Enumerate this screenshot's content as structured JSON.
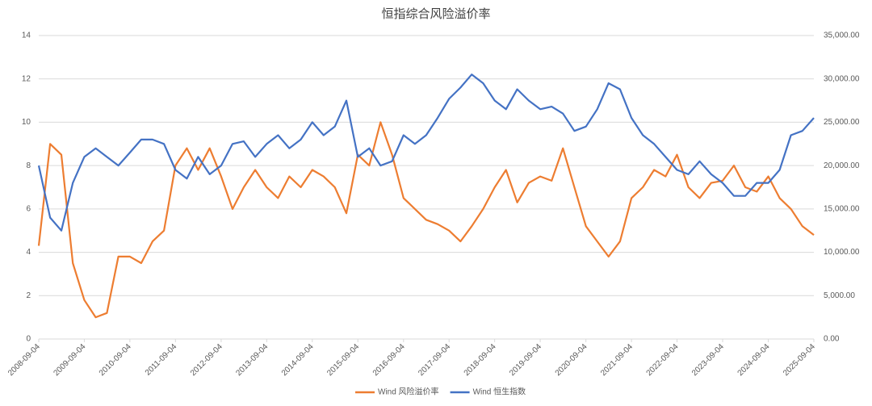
{
  "chart_data": {
    "type": "line",
    "title": "恒指综合风险溢价率",
    "x": [
      "2008-09-04",
      "2008-12-04",
      "2009-03-04",
      "2009-06-04",
      "2009-09-04",
      "2009-12-04",
      "2010-03-04",
      "2010-06-04",
      "2010-09-04",
      "2010-12-04",
      "2011-03-04",
      "2011-06-04",
      "2011-09-04",
      "2011-12-04",
      "2012-03-04",
      "2012-06-04",
      "2012-09-04",
      "2012-12-04",
      "2013-03-04",
      "2013-06-04",
      "2013-09-04",
      "2013-12-04",
      "2014-03-04",
      "2014-06-04",
      "2014-09-04",
      "2014-12-04",
      "2015-03-04",
      "2015-06-04",
      "2015-09-04",
      "2015-12-04",
      "2016-03-04",
      "2016-06-04",
      "2016-09-04",
      "2016-12-04",
      "2017-03-04",
      "2017-06-04",
      "2017-09-04",
      "2017-12-04",
      "2018-03-04",
      "2018-06-04",
      "2018-09-04",
      "2018-12-04",
      "2019-03-04",
      "2019-06-04",
      "2019-09-04",
      "2019-12-04",
      "2020-03-04",
      "2020-06-04",
      "2020-09-04",
      "2020-12-04",
      "2021-03-04",
      "2021-06-04",
      "2021-09-04",
      "2021-12-04",
      "2022-03-04",
      "2022-06-04",
      "2022-09-04",
      "2022-12-04",
      "2023-03-04",
      "2023-06-04",
      "2023-09-04",
      "2023-12-04",
      "2024-03-04",
      "2024-06-04",
      "2024-09-04",
      "2024-12-04",
      "2025-03-04",
      "2025-06-04",
      "2025-09-04"
    ],
    "series": [
      {
        "name": "Wind 风险溢价率",
        "color": "#ed7d31",
        "axis": "y",
        "values": [
          4.3,
          9.0,
          8.5,
          3.5,
          1.8,
          1.0,
          1.2,
          3.8,
          3.8,
          3.5,
          4.5,
          5.0,
          8.0,
          8.8,
          7.8,
          8.8,
          7.5,
          6.0,
          7.0,
          7.8,
          7.0,
          6.5,
          7.5,
          7.0,
          7.8,
          7.5,
          7.0,
          5.8,
          8.5,
          8.0,
          10.0,
          8.5,
          6.5,
          6.0,
          5.5,
          5.3,
          5.0,
          4.5,
          5.2,
          6.0,
          7.0,
          7.8,
          6.3,
          7.2,
          7.5,
          7.3,
          8.8,
          7.0,
          5.2,
          4.5,
          3.8,
          4.5,
          6.5,
          7.0,
          7.8,
          7.5,
          8.5,
          7.0,
          6.5,
          7.2,
          7.3,
          8.0,
          7.0,
          6.8,
          7.5,
          6.5,
          6.0,
          5.2,
          4.8
        ]
      },
      {
        "name": "Wind 恒生指数",
        "color": "#4472c4",
        "axis": "y2",
        "values": [
          20000,
          14000,
          12500,
          18000,
          21000,
          22000,
          21000,
          20000,
          21500,
          23000,
          23000,
          22500,
          19500,
          18500,
          21000,
          19000,
          20000,
          22500,
          22800,
          21000,
          22500,
          23500,
          22000,
          23000,
          25000,
          23500,
          24500,
          27500,
          21000,
          22000,
          20000,
          20500,
          23500,
          22500,
          23500,
          25500,
          27700,
          29000,
          30500,
          29500,
          27500,
          26500,
          28800,
          27500,
          26500,
          26800,
          26000,
          24000,
          24500,
          26500,
          29500,
          28800,
          25500,
          23500,
          22500,
          21000,
          19500,
          19000,
          20500,
          19000,
          18000,
          16500,
          16500,
          18000,
          18000,
          19500,
          23500,
          24000,
          25500
        ]
      }
    ],
    "ylim": [
      0,
      14
    ],
    "yticks": [
      0,
      2,
      4,
      6,
      8,
      10,
      12,
      14
    ],
    "y2lim": [
      0,
      35000
    ],
    "y2ticks": [
      {
        "value": 0,
        "label": "0.00"
      },
      {
        "value": 5000,
        "label": "5,000.00"
      },
      {
        "value": 10000,
        "label": "10,000.00"
      },
      {
        "value": 15000,
        "label": "15,000.00"
      },
      {
        "value": 20000,
        "label": "20,000.00"
      },
      {
        "value": 25000,
        "label": "25,000.00"
      },
      {
        "value": 30000,
        "label": "30,000.00"
      },
      {
        "value": 35000,
        "label": "35,000.00"
      }
    ],
    "xticks": [
      "2008-09-04",
      "2009-09-04",
      "2010-09-04",
      "2011-09-04",
      "2012-09-04",
      "2013-09-04",
      "2014-09-04",
      "2015-09-04",
      "2016-09-04",
      "2017-09-04",
      "2018-09-04",
      "2019-09-04",
      "2020-09-04",
      "2021-09-04",
      "2022-09-04",
      "2023-09-04",
      "2024-09-04",
      "2025-09-04"
    ],
    "grid": true,
    "legend": "bottom"
  }
}
